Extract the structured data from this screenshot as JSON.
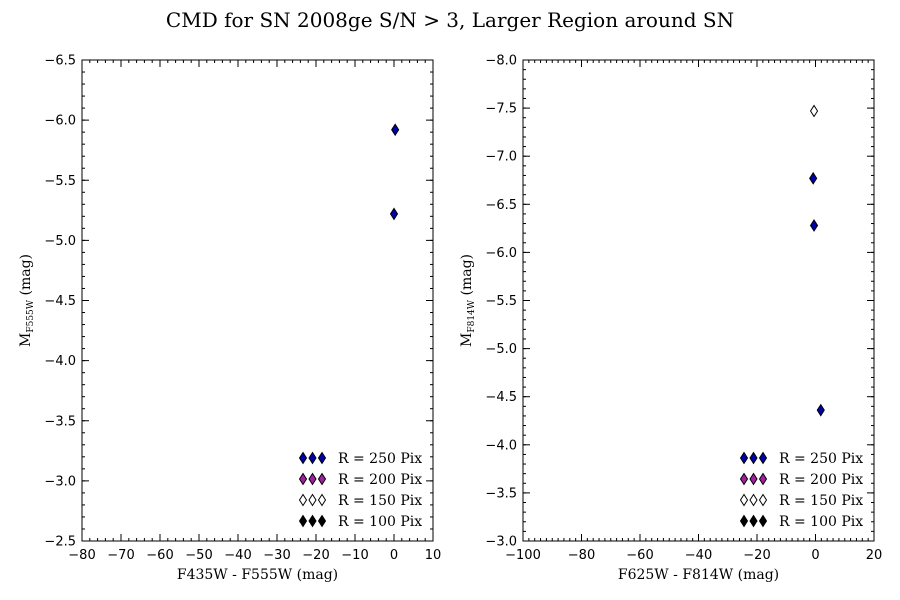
{
  "figure_title": "CMD for SN 2008ge S/N > 3, Larger Region around SN",
  "colors": {
    "r250": "#0000aa",
    "r200": "#a020a0",
    "r150": "#ffffff",
    "r100": "#000000",
    "edge": "#000000"
  },
  "legend": [
    {
      "label": "R = 250 Pix",
      "color_key": "r250"
    },
    {
      "label": "R = 200 Pix",
      "color_key": "r200"
    },
    {
      "label": "R = 150 Pix",
      "color_key": "r150"
    },
    {
      "label": "R = 100 Pix",
      "color_key": "r100"
    }
  ],
  "chart_data": [
    {
      "type": "scatter",
      "marker": "diamond",
      "xlabel": "F435W - F555W (mag)",
      "ylabel_main": "M",
      "ylabel_sub": "F555W",
      "ylabel_suffix": " (mag)",
      "xlim": [
        -80,
        10
      ],
      "ylim": [
        -2.5,
        -6.5
      ],
      "y_inverted": true,
      "xticks": [
        -80,
        -70,
        -60,
        -50,
        -40,
        -30,
        -20,
        -10,
        0,
        10
      ],
      "yticks": [
        -6.5,
        -6.0,
        -5.5,
        -5.0,
        -4.5,
        -4.0,
        -3.5,
        -3.0,
        -2.5
      ],
      "x_minor_step": 2,
      "y_minor_step": 0.1,
      "legend_position": "lower-right",
      "series": [
        {
          "name": "R = 250 Pix",
          "color_key": "r250",
          "points": [
            {
              "x": 0.3,
              "y": -5.92
            },
            {
              "x": 0.0,
              "y": -5.22
            }
          ]
        }
      ]
    },
    {
      "type": "scatter",
      "marker": "diamond",
      "xlabel": "F625W - F814W (mag)",
      "ylabel_main": "M",
      "ylabel_sub": "F814W",
      "ylabel_suffix": " (mag)",
      "xlim": [
        -100,
        20
      ],
      "ylim": [
        -3.0,
        -8.0
      ],
      "y_inverted": true,
      "xticks": [
        -100,
        -80,
        -60,
        -40,
        -20,
        0,
        20
      ],
      "yticks": [
        -8.0,
        -7.5,
        -7.0,
        -6.5,
        -6.0,
        -5.5,
        -5.0,
        -4.5,
        -4.0,
        -3.5,
        -3.0
      ],
      "x_minor_step": 2,
      "y_minor_step": 0.1,
      "legend_position": "lower-right",
      "series": [
        {
          "name": "R = 150 Pix",
          "color_key": "r150",
          "points": [
            {
              "x": -0.5,
              "y": -7.47
            }
          ]
        },
        {
          "name": "R = 250 Pix",
          "color_key": "r250",
          "points": [
            {
              "x": -0.8,
              "y": -6.77
            },
            {
              "x": -0.5,
              "y": -6.28
            },
            {
              "x": 1.8,
              "y": -4.36
            }
          ]
        }
      ]
    }
  ]
}
